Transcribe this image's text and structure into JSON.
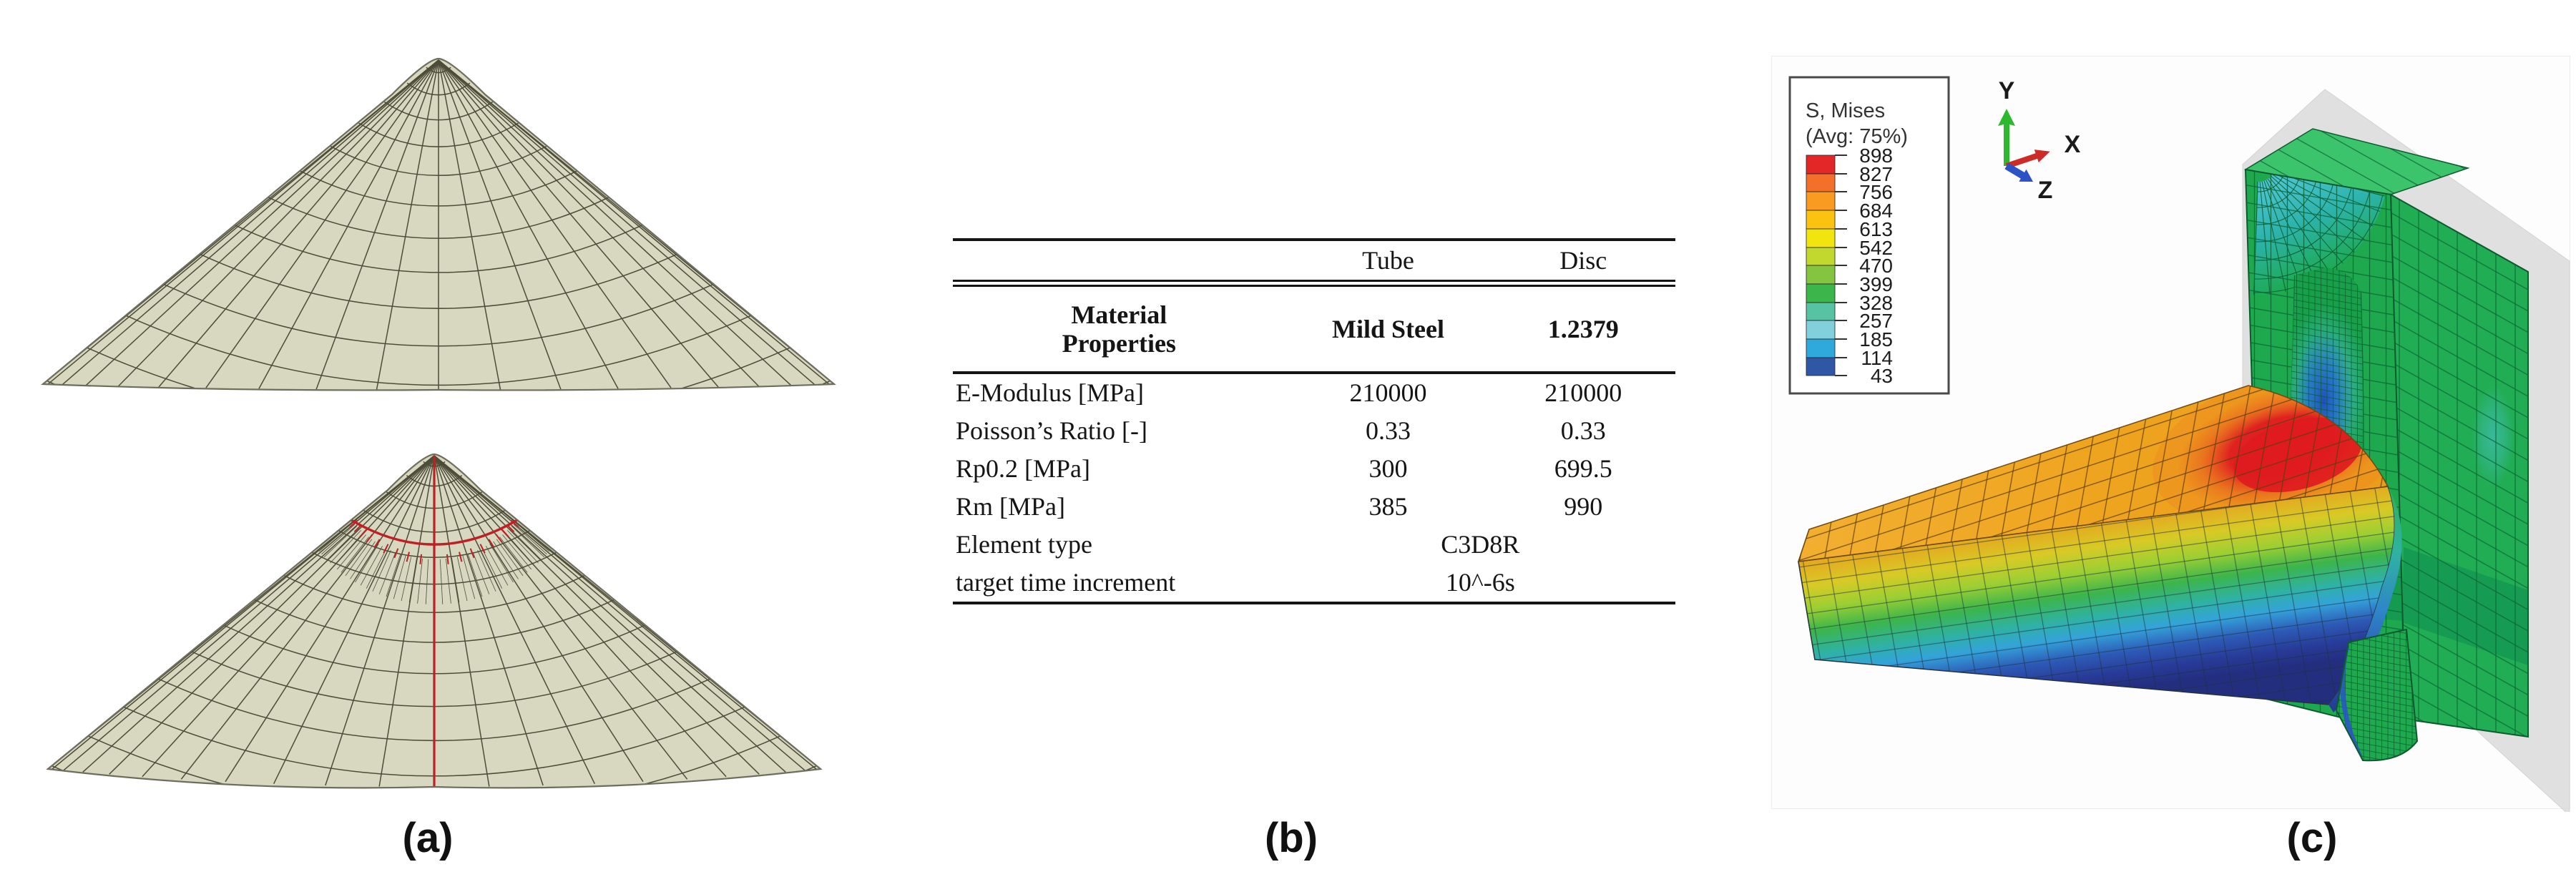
{
  "panels": {
    "a": {
      "label": "(a)"
    },
    "b": {
      "label": "(b)"
    },
    "c": {
      "label": "(c)"
    }
  },
  "table": {
    "headers": {
      "tube": "Tube",
      "disc": "Disc"
    },
    "material": {
      "label": "Material Properties",
      "tube": "Mild Steel",
      "disc": "1.2379"
    },
    "rows": [
      {
        "label": "E-Modulus [MPa]",
        "tube": "210000",
        "disc": "210000"
      },
      {
        "label": "Poisson’s Ratio [-]",
        "tube": "0.33",
        "disc": "0.33"
      },
      {
        "label": "Rp0.2 [MPa]",
        "tube": "300",
        "disc": "699.5"
      },
      {
        "label": "Rm [MPa]",
        "tube": "385",
        "disc": "990"
      }
    ],
    "span_rows": [
      {
        "label": "Element type",
        "value": "C3D8R"
      },
      {
        "label": "target time increment",
        "value": "10^-6s"
      }
    ]
  },
  "legend": {
    "title": "S, Mises",
    "subtitle": "(Avg: 75%)",
    "ticks": [
      "898",
      "827",
      "756",
      "684",
      "613",
      "542",
      "470",
      "399",
      "328",
      "257",
      "185",
      "114",
      "43"
    ],
    "band_colors": [
      "#e32726",
      "#f2702a",
      "#f89b20",
      "#fbc20f",
      "#f1e510",
      "#c3d82f",
      "#84c441",
      "#3cb54b",
      "#57c3a2",
      "#82d0dc",
      "#2fa8dc",
      "#3056a6"
    ]
  },
  "triad": {
    "x": "X",
    "y": "Y",
    "z": "Z",
    "x_color": "#cc2b26",
    "y_color": "#2eb82e",
    "z_color": "#2c52c8"
  },
  "mesh": {
    "cone_fill": "#d8d7c0",
    "cone_line": "#4c4c39",
    "marker_red": "#bf2026",
    "disc_green": "#1ea94e",
    "tube_amber": "#efa41f",
    "hot_spot_red": "#de1b20",
    "low_stress_blue": "#243b92",
    "rigid_plane_gray": "#d9d9d9"
  }
}
